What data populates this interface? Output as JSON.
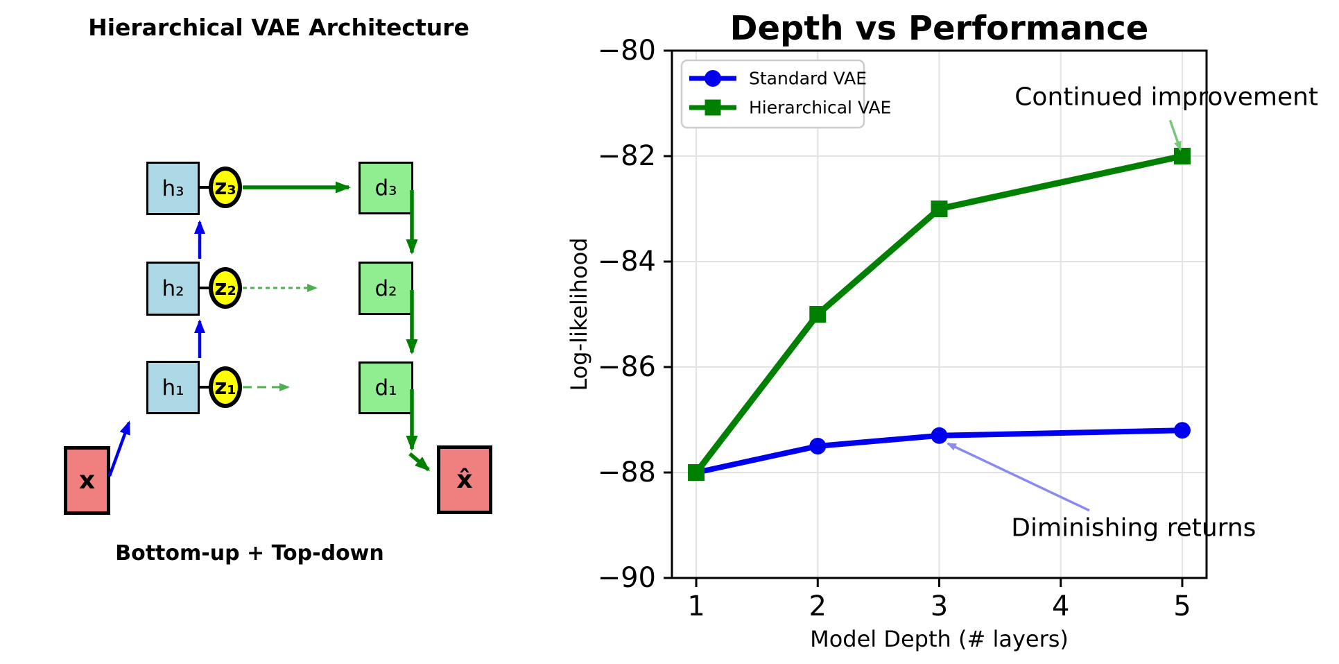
{
  "left_panel": {
    "title": "Hierarchical VAE Architecture",
    "caption": "Bottom-up + Top-down",
    "labels": {
      "h1": "h₁",
      "h2": "h₂",
      "h3": "h₃",
      "z1": "z₁",
      "z2": "z₂",
      "z3": "z₃",
      "d1": "d₁",
      "d2": "d₂",
      "d3": "d₃",
      "input": "x",
      "output": "x̂"
    },
    "colors": {
      "encoder_box": "#ADD8E6",
      "decoder_box": "#90EE90",
      "latent_node": "#FFFF00",
      "data_box": "#F08080",
      "bottom_up_arrow": "#0000EE",
      "top_down_arrow": "#008000",
      "sampled_arrow": "#4CAF50"
    }
  },
  "chart_data": {
    "type": "line",
    "title": "Depth vs Performance",
    "xlabel": "Model Depth (# layers)",
    "ylabel": "Log-likelihood",
    "x_ticks": [
      1,
      2,
      3,
      4,
      5
    ],
    "y_ticks": [
      -80,
      -82,
      -84,
      -86,
      -88,
      -90
    ],
    "xlim": [
      0.8,
      5.2
    ],
    "ylim": [
      -90,
      -80
    ],
    "grid": true,
    "legend_position": "upper left",
    "series": [
      {
        "name": "Standard VAE",
        "color": "#0000EE",
        "marker": "circle",
        "linewidth": 8,
        "x": [
          1,
          2,
          3,
          5
        ],
        "y": [
          -88,
          -87.5,
          -87.3,
          -87.2
        ]
      },
      {
        "name": "Hierarchical VAE",
        "color": "#008000",
        "marker": "square",
        "linewidth": 9,
        "x": [
          1,
          2,
          3,
          5
        ],
        "y": [
          -88,
          -85,
          -83,
          -82
        ]
      }
    ],
    "annotations": [
      {
        "text": "Continued improvement",
        "text_xy": [
          4.87,
          -80.88
        ],
        "arrow_from": [
          4.9,
          -81.32
        ],
        "arrow_to": [
          4.985,
          -81.88
        ],
        "color": "#79C779"
      },
      {
        "text": "Diminishing returns",
        "text_xy": [
          4.6,
          -89.05
        ],
        "arrow_from": [
          4.235,
          -88.72
        ],
        "arrow_to": [
          3.07,
          -87.45
        ],
        "color": "#8A8AEF"
      }
    ]
  }
}
